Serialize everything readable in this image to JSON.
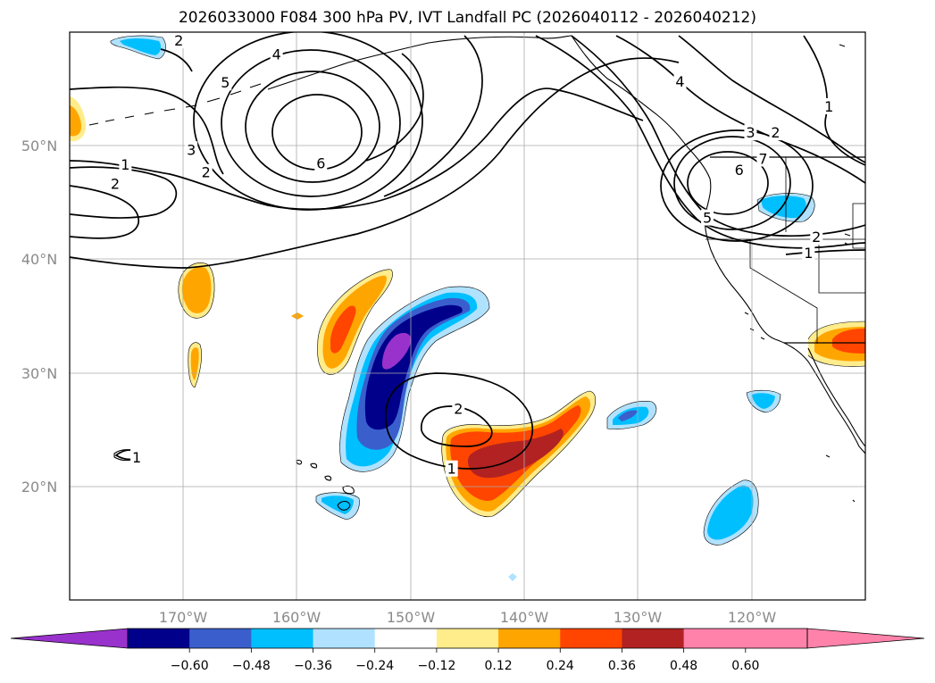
{
  "chart_data": {
    "type": "contour-map",
    "title": "2026033000 F084 300 hPa PV, IVT Landfall PC (2026040112 - 2026040212)",
    "projection": "PlateCarree",
    "lon_range": [
      -180,
      -110
    ],
    "lat_range": [
      10,
      60
    ],
    "lat_ticks": [
      20,
      30,
      40,
      50
    ],
    "lat_tick_labels": [
      "20°N",
      "30°N",
      "40°N",
      "50°N"
    ],
    "lon_ticks": [
      -170,
      -160,
      -150,
      -140,
      -130,
      -120
    ],
    "lon_tick_labels": [
      "170°W",
      "160°W",
      "150°W",
      "140°W",
      "130°W",
      "120°W"
    ],
    "grid": true,
    "colorbar": {
      "orientation": "horizontal",
      "extend": "both",
      "levels": [
        -0.72,
        -0.6,
        -0.48,
        -0.36,
        -0.24,
        -0.12,
        0.12,
        0.24,
        0.36,
        0.48,
        0.6,
        0.72
      ],
      "tick_values": [
        -0.6,
        -0.48,
        -0.36,
        -0.24,
        -0.12,
        0.12,
        0.24,
        0.36,
        0.48,
        0.6
      ],
      "tick_labels": [
        "−0.60",
        "−0.48",
        "−0.36",
        "−0.24",
        "−0.12",
        "0.12",
        "0.24",
        "0.36",
        "0.48",
        "0.60"
      ],
      "colors": [
        "#9932cc",
        "#00008b",
        "#3a5fcd",
        "#00bfff",
        "#b0e2ff",
        "#ffffff",
        "#ffec8b",
        "#ffa500",
        "#ff4500",
        "#b22222",
        "#ff82ab"
      ]
    },
    "contour_labels": [
      {
        "text": "2",
        "lon": -170.4,
        "lat": 59.2
      },
      {
        "text": "5",
        "lon": -166.3,
        "lat": 55.5
      },
      {
        "text": "4",
        "lon": -161.8,
        "lat": 58.0
      },
      {
        "text": "3",
        "lon": -169.3,
        "lat": 49.6
      },
      {
        "text": "2",
        "lon": -168.0,
        "lat": 47.6
      },
      {
        "text": "1",
        "lon": -175.1,
        "lat": 48.3
      },
      {
        "text": "2",
        "lon": -176.0,
        "lat": 46.6
      },
      {
        "text": "6",
        "lon": -157.9,
        "lat": 48.4
      },
      {
        "text": "4",
        "lon": -126.3,
        "lat": 55.6
      },
      {
        "text": "3",
        "lon": -120.1,
        "lat": 51.1
      },
      {
        "text": "2",
        "lon": -117.9,
        "lat": 51.1
      },
      {
        "text": "1",
        "lon": -113.2,
        "lat": 53.4
      },
      {
        "text": "7",
        "lon": -119.0,
        "lat": 48.8
      },
      {
        "text": "6",
        "lon": -121.1,
        "lat": 47.8
      },
      {
        "text": "5",
        "lon": -123.9,
        "lat": 43.6
      },
      {
        "text": "2",
        "lon": -114.3,
        "lat": 41.9
      },
      {
        "text": "1",
        "lon": -115.0,
        "lat": 40.5
      },
      {
        "text": "2",
        "lon": -145.8,
        "lat": 26.8
      },
      {
        "text": "1",
        "lon": -146.4,
        "lat": 21.5
      },
      {
        "text": "1",
        "lon": -174.1,
        "lat": 22.5
      }
    ]
  }
}
